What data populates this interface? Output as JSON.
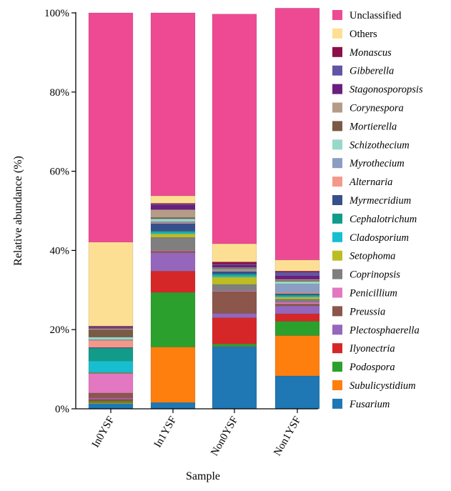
{
  "chart_data": {
    "type": "bar",
    "stacked": true,
    "xlabel": "Sample",
    "ylabel": "Relative abundance (%)",
    "ylim": [
      0,
      100
    ],
    "yticks": [
      "0%",
      "20%",
      "40%",
      "60%",
      "80%",
      "100%"
    ],
    "ytick_values": [
      0,
      20,
      40,
      60,
      80,
      100
    ],
    "categories": [
      "In0YSF",
      "In1YSF",
      "Non0YSF",
      "Non1YSF"
    ],
    "legend_position": "right",
    "series": [
      {
        "name": "Fusarium",
        "italic": true,
        "color": "#1f77b4",
        "values": [
          1.3,
          1.6,
          15.7,
          8.3
        ]
      },
      {
        "name": "Subulicystidium",
        "italic": true,
        "color": "#ff7f0e",
        "values": [
          0.2,
          14.0,
          0.1,
          10.2
        ]
      },
      {
        "name": "Podospora",
        "italic": true,
        "color": "#2ca02c",
        "values": [
          0.5,
          13.8,
          0.6,
          3.6
        ]
      },
      {
        "name": "Ilyonectria",
        "italic": true,
        "color": "#d62728",
        "values": [
          0.4,
          5.4,
          6.6,
          1.9
        ]
      },
      {
        "name": "Plectosphaerella",
        "italic": true,
        "color": "#9467bd",
        "values": [
          0.4,
          4.6,
          1.1,
          2.0
        ]
      },
      {
        "name": "Preussia",
        "italic": true,
        "color": "#8c564b",
        "values": [
          1.2,
          0.4,
          5.5,
          0.5
        ]
      },
      {
        "name": "Penicillium",
        "italic": true,
        "color": "#e377c2",
        "values": [
          4.9,
          0.2,
          0.2,
          0.4
        ]
      },
      {
        "name": "Coprinopsis",
        "italic": true,
        "color": "#7f7f7f",
        "values": [
          0.2,
          3.3,
          1.6,
          0.8
        ]
      },
      {
        "name": "Setophoma",
        "italic": true,
        "color": "#bcbd22",
        "values": [
          0.1,
          0.9,
          1.9,
          0.5
        ]
      },
      {
        "name": "Cladosporium",
        "italic": true,
        "color": "#17becf",
        "values": [
          2.9,
          0.4,
          0.4,
          0.3
        ]
      },
      {
        "name": "Cephalotrichum",
        "italic": true,
        "color": "#119c8a",
        "values": [
          3.2,
          0.3,
          0.4,
          0.3
        ]
      },
      {
        "name": "Myrmecridium",
        "italic": true,
        "color": "#37508c",
        "values": [
          0.2,
          1.9,
          0.6,
          0.3
        ]
      },
      {
        "name": "Alternaria",
        "italic": true,
        "color": "#f4998a",
        "values": [
          1.8,
          0.2,
          0.2,
          0.3
        ]
      },
      {
        "name": "Myrothecium",
        "italic": true,
        "color": "#8c9dc4",
        "values": [
          0.2,
          0.3,
          0.2,
          2.1
        ]
      },
      {
        "name": "Schizothecium",
        "italic": true,
        "color": "#98d8c8",
        "values": [
          0.6,
          0.7,
          0.2,
          0.7
        ]
      },
      {
        "name": "Mortierella",
        "italic": true,
        "color": "#7a5a44",
        "values": [
          1.9,
          0.3,
          0.2,
          0.2
        ]
      },
      {
        "name": "Corynespora",
        "italic": true,
        "color": "#b59c88",
        "values": [
          0.3,
          2.0,
          0.2,
          0.3
        ]
      },
      {
        "name": "Stagonosporopsis",
        "italic": true,
        "color": "#6a1e7e",
        "values": [
          0.2,
          1.2,
          0.6,
          0.9
        ]
      },
      {
        "name": "Gibberella",
        "italic": true,
        "color": "#6254a4",
        "values": [
          0.2,
          0.2,
          0.2,
          0.9
        ]
      },
      {
        "name": "Monascus",
        "italic": true,
        "color": "#8c0f4a",
        "values": [
          0.2,
          0.2,
          0.6,
          0.3
        ]
      },
      {
        "name": "Others",
        "italic": false,
        "color": "#fddf94",
        "values": [
          21.2,
          1.9,
          4.6,
          2.8
        ]
      },
      {
        "name": "Unclassified",
        "italic": false,
        "color": "#ee4a94",
        "values": [
          57.9,
          46.2,
          58.0,
          63.6
        ]
      }
    ]
  }
}
